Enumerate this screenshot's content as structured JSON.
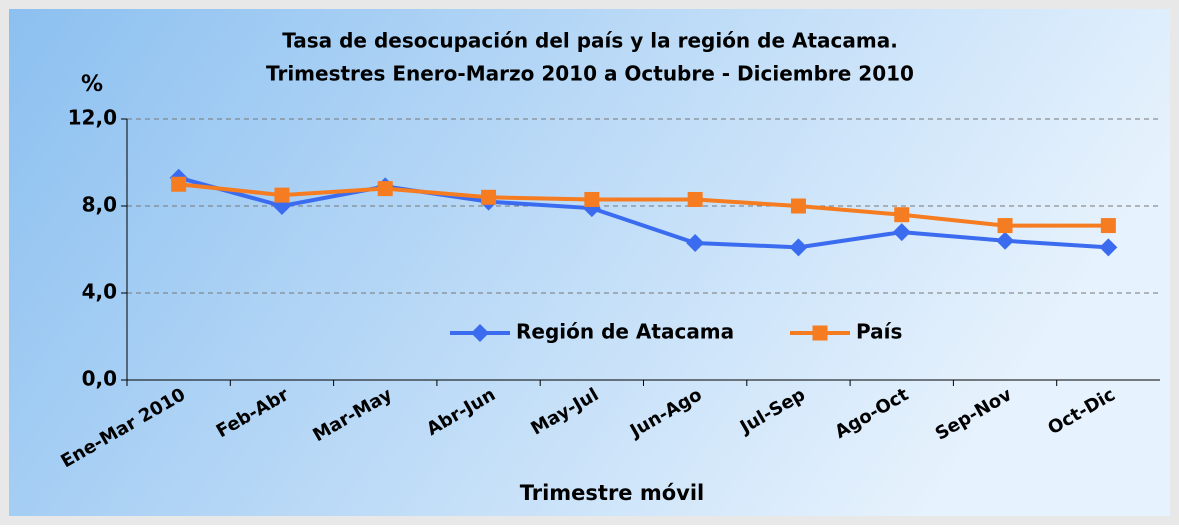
{
  "chart_data": {
    "type": "line",
    "title": [
      "Tasa de desocupación del país y la región de Atacama.",
      "Trimestres Enero-Marzo 2010 a Octubre - Diciembre 2010"
    ],
    "y_label": "%",
    "x_label": "Trimestre móvil",
    "categories": [
      "Ene-Mar 2010",
      "Feb-Abr",
      "Mar-May",
      "Abr-Jun",
      "May-Jul",
      "Jun-Ago",
      "Jul-Sep",
      "Ago-Oct",
      "Sep-Nov",
      "Oct-Dic"
    ],
    "series": [
      {
        "name": "Región de Atacama",
        "color": "#3b6cf0",
        "marker": "diamond",
        "values": [
          9.3,
          8.0,
          8.9,
          8.2,
          7.9,
          6.3,
          6.1,
          6.8,
          6.4,
          6.1
        ]
      },
      {
        "name": "País",
        "color": "#f57c20",
        "marker": "square",
        "values": [
          9.0,
          8.5,
          8.8,
          8.4,
          8.3,
          8.3,
          8.0,
          7.6,
          7.1,
          7.1
        ]
      }
    ],
    "ylim": [
      0,
      12
    ],
    "yticks": [
      {
        "value": 0,
        "label": "0,0"
      },
      {
        "value": 4,
        "label": "4,0"
      },
      {
        "value": 8,
        "label": "8,0"
      },
      {
        "value": 12,
        "label": "12,0"
      }
    ],
    "grid": true
  }
}
